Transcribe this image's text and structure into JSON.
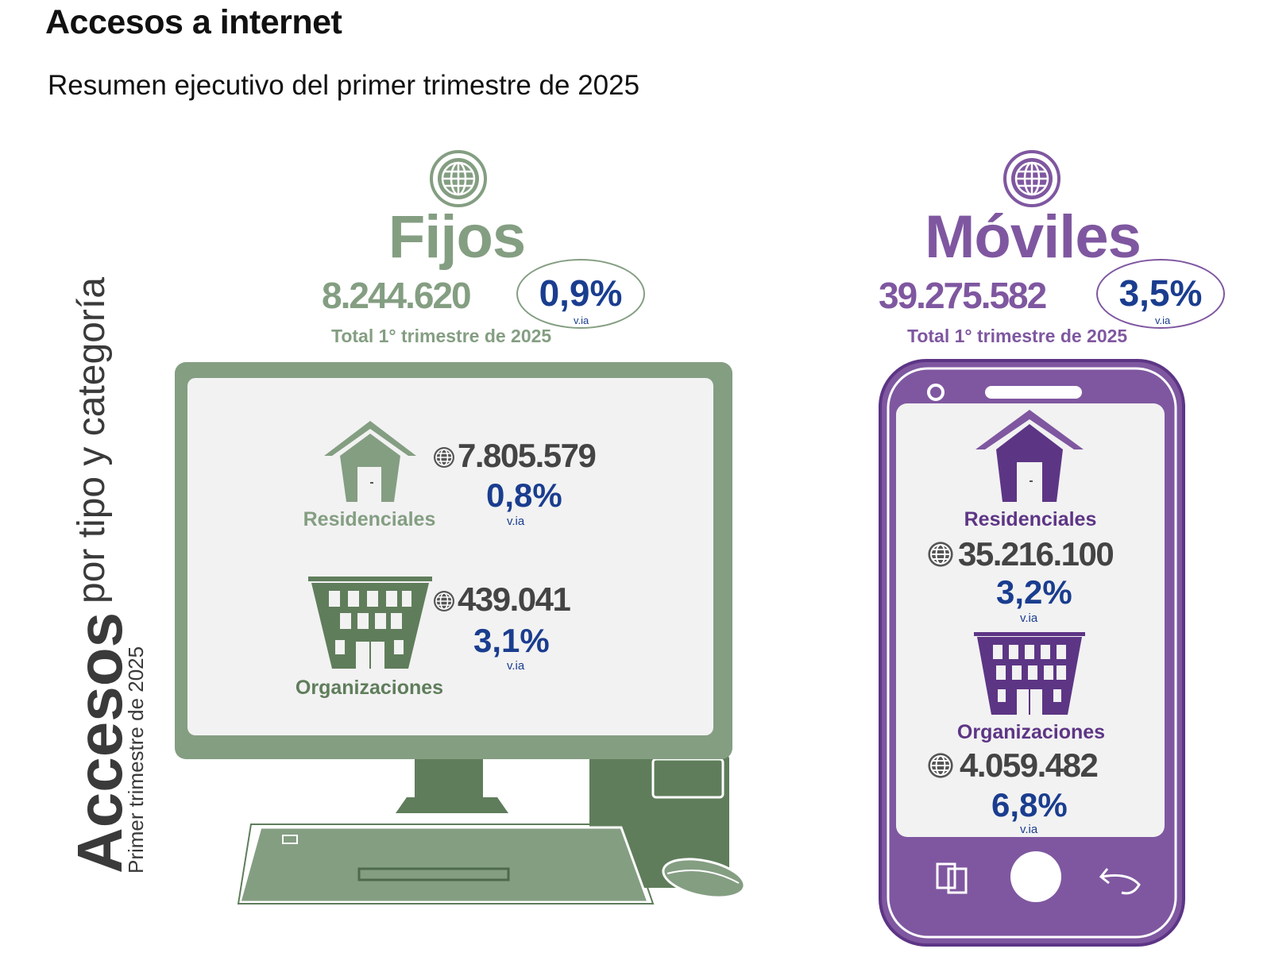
{
  "header": {
    "title": "Accesos a internet",
    "subtitle": "Resumen ejecutivo del primer trimestre de 2025"
  },
  "side_label": {
    "main": "Accesos",
    "sub": "por tipo y categoría",
    "note": "Primer trimestre de 2025"
  },
  "colors": {
    "fijos": "#849e82",
    "fijos_dark": "#5f7d5b",
    "moviles": "#7f57a0",
    "moviles_dark": "#5d3585",
    "pct_blue": "#1a3d8f",
    "value_gray": "#444444"
  },
  "fijos": {
    "icon": "globe-icon",
    "title": "Fijos",
    "total": "8.244.620",
    "change": "0,9%",
    "change_label": "v.ia",
    "caption": "Total 1° trimestre de 2025",
    "residenciales": {
      "icon": "house-icon",
      "label": "Residenciales",
      "value": "7.805.579",
      "change": "0,8%",
      "change_label": "v.ia"
    },
    "organizaciones": {
      "icon": "building-icon",
      "label": "Organizaciones",
      "value": "439.041",
      "change": "3,1%",
      "change_label": "v.ia"
    }
  },
  "moviles": {
    "icon": "globe-icon",
    "title": "Móviles",
    "total": "39.275.582",
    "change": "3,5%",
    "change_label": "v.ia",
    "caption": "Total 1° trimestre de 2025",
    "residenciales": {
      "icon": "house-icon",
      "label": "Residenciales",
      "value": "35.216.100",
      "change": "3,2%",
      "change_label": "v.ia"
    },
    "organizaciones": {
      "icon": "building-icon",
      "label": "Organizaciones",
      "value": "4.059.482",
      "change": "6,8%",
      "change_label": "v.ia"
    }
  }
}
